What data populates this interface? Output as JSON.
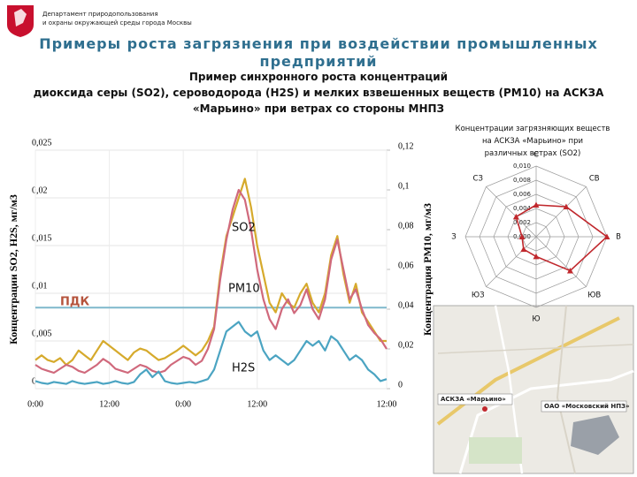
{
  "header": {
    "org": [
      "Департамент природопользования",
      "и охраны окружающей среды города Москвы"
    ],
    "title": "Примеры роста загрязнения при воздействии промышленных предприятий",
    "subtitle": [
      "Пример синхронного роста концентраций",
      "диоксида серы (SO2), сероводорода (H2S) и мелких взвешенных веществ (PM10) на АСКЗА",
      "«Марьино» при ветрах со стороны МНПЗ"
    ]
  },
  "chart_data": [
    {
      "type": "line",
      "ylabel": "Концентрации SO2, H2S, мг/м3",
      "y2label": "Концентрация PM10, мг/м3",
      "x": [
        0,
        1,
        2,
        3,
        4,
        5,
        6,
        7,
        8,
        9,
        10,
        11,
        12,
        13,
        14,
        15,
        16,
        17,
        18,
        19,
        20,
        21,
        22,
        23,
        24,
        25,
        26,
        27,
        28,
        29,
        30,
        31,
        32,
        33,
        34,
        35,
        36,
        37,
        38,
        39,
        40,
        41,
        42,
        43,
        44,
        45,
        46,
        47,
        48,
        49,
        50,
        51,
        52,
        53,
        54,
        55,
        56,
        57
      ],
      "xlim": [
        0,
        57
      ],
      "xticks": [
        {
          "value": 0,
          "label": "0:00"
        },
        {
          "value": 12,
          "label": "12:00"
        },
        {
          "value": 24,
          "label": "0:00"
        },
        {
          "value": 36,
          "label": "12:00"
        },
        {
          "value": 57,
          "label": "12:00"
        }
      ],
      "ylim": [
        0,
        0.025
      ],
      "yticks": [
        0,
        {
          "value": 0.005,
          "label": "0,005"
        },
        {
          "value": 0.01,
          "label": "0,01"
        },
        {
          "value": 0.015,
          "label": "0,015"
        },
        {
          "value": 0.02,
          "label": "0,02"
        },
        {
          "value": 0.025,
          "label": "0,025"
        }
      ],
      "y2lim": [
        0,
        0.12
      ],
      "y2ticks": [
        0,
        {
          "value": 0.02,
          "label": "0,02"
        },
        {
          "value": 0.04,
          "label": "0,04"
        },
        {
          "value": 0.06,
          "label": "0,06"
        },
        {
          "value": 0.08,
          "label": "0,08"
        },
        {
          "value": 0.1,
          "label": "0,1"
        },
        {
          "value": 0.12,
          "label": "0,12"
        }
      ],
      "grid": true,
      "threshold": {
        "label": "ПДК",
        "value": 0.0085,
        "color": "#7fb8cc"
      },
      "annotations": [
        "SO2",
        "PM10",
        "H2S"
      ],
      "series": [
        {
          "name": "SO2",
          "color": "#d6aa2c",
          "values": [
            0.003,
            0.0035,
            0.003,
            0.0028,
            0.0032,
            0.0025,
            0.003,
            0.004,
            0.0035,
            0.003,
            0.004,
            0.005,
            0.0045,
            0.004,
            0.0035,
            0.003,
            0.0038,
            0.0042,
            0.004,
            0.0035,
            0.003,
            0.0032,
            0.0036,
            0.004,
            0.0045,
            0.004,
            0.0035,
            0.004,
            0.005,
            0.0065,
            0.012,
            0.016,
            0.018,
            0.02,
            0.022,
            0.019,
            0.015,
            0.012,
            0.009,
            0.008,
            0.01,
            0.009,
            0.0085,
            0.01,
            0.011,
            0.009,
            0.008,
            0.01,
            0.014,
            0.016,
            0.012,
            0.009,
            0.011,
            0.008,
            0.007,
            0.006,
            0.005,
            0.005
          ]
        },
        {
          "name": "PM10",
          "color": "#d0697c",
          "axis": "y2",
          "values": [
            0.012,
            0.01,
            0.009,
            0.008,
            0.01,
            0.012,
            0.011,
            0.009,
            0.008,
            0.01,
            0.012,
            0.015,
            0.013,
            0.01,
            0.009,
            0.008,
            0.01,
            0.012,
            0.011,
            0.009,
            0.008,
            0.009,
            0.012,
            0.014,
            0.016,
            0.015,
            0.012,
            0.014,
            0.02,
            0.03,
            0.055,
            0.075,
            0.09,
            0.1,
            0.095,
            0.08,
            0.06,
            0.045,
            0.035,
            0.03,
            0.04,
            0.045,
            0.038,
            0.042,
            0.05,
            0.04,
            0.035,
            0.045,
            0.065,
            0.075,
            0.06,
            0.045,
            0.05,
            0.04,
            0.032,
            0.028,
            0.025,
            0.02
          ]
        },
        {
          "name": "H2S",
          "color": "#4ba4c2",
          "values": [
            0.0008,
            0.0006,
            0.0005,
            0.0007,
            0.0006,
            0.0005,
            0.0008,
            0.0006,
            0.0005,
            0.0006,
            0.0007,
            0.0005,
            0.0006,
            0.0008,
            0.0006,
            0.0005,
            0.0007,
            0.0015,
            0.002,
            0.0012,
            0.0018,
            0.0008,
            0.0006,
            0.0005,
            0.0006,
            0.0007,
            0.0006,
            0.0008,
            0.001,
            0.002,
            0.004,
            0.006,
            0.0065,
            0.007,
            0.006,
            0.0055,
            0.006,
            0.004,
            0.003,
            0.0035,
            0.003,
            0.0025,
            0.003,
            0.004,
            0.005,
            0.0045,
            0.005,
            0.004,
            0.0055,
            0.005,
            0.004,
            0.003,
            0.0035,
            0.003,
            0.002,
            0.0015,
            0.0008,
            0.001
          ]
        }
      ]
    },
    {
      "type": "radar",
      "title": "Концентрации загрязняющих веществ на АСКЗА «Марьино» при различных ветрах (SO2)",
      "categories": [
        "С",
        "СВ",
        "В",
        "ЮВ",
        "Ю",
        "ЮЗ",
        "З",
        "СЗ"
      ],
      "values": [
        0.0045,
        0.006,
        0.01,
        0.0068,
        0.0028,
        0.0025,
        0.002,
        0.004
      ],
      "color": "#c0282d",
      "rlim": [
        0,
        0.01
      ],
      "rticks": [
        {
          "value": 0,
          "label": "0,000"
        },
        {
          "value": 0.002,
          "label": "0,002"
        },
        {
          "value": 0.004,
          "label": "0,004"
        },
        {
          "value": 0.006,
          "label": "0,006"
        },
        {
          "value": 0.008,
          "label": "0,008"
        },
        {
          "value": 0.01,
          "label": "0,010"
        }
      ]
    }
  ],
  "map": {
    "labels": [
      "АСКЗА «Марьино»",
      "ОАО «Московский НПЗ»"
    ]
  }
}
